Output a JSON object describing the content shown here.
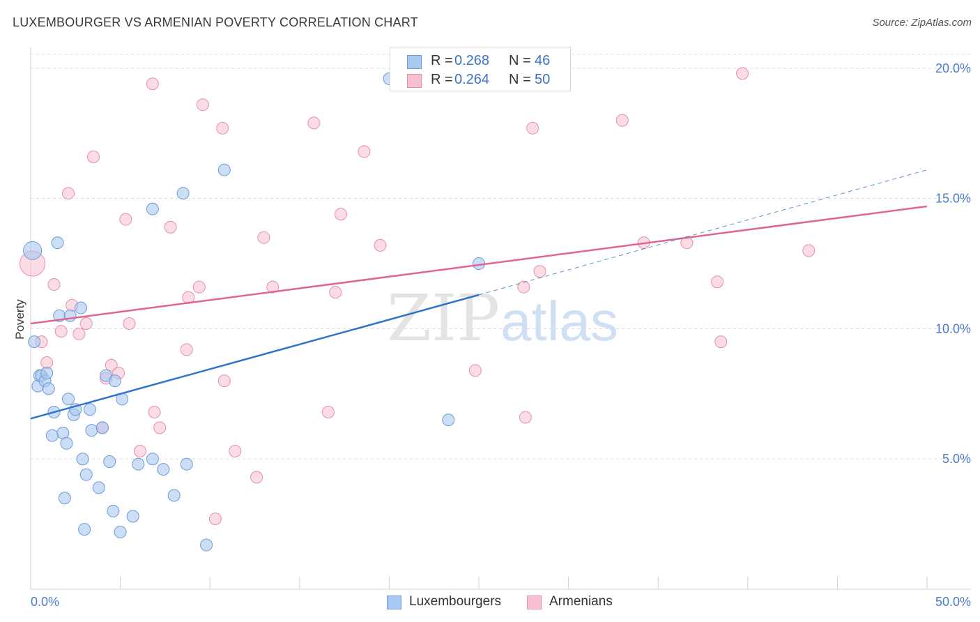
{
  "header": {
    "title": "LUXEMBOURGER VS ARMENIAN POVERTY CORRELATION CHART",
    "source": "Source: ZipAtlas.com"
  },
  "watermark": {
    "part1": "ZIP",
    "part2": "atlas"
  },
  "legend": {
    "rows": [
      {
        "r_label": "R = ",
        "r_value": "0.268",
        "n_label": "N = ",
        "n_value": "46"
      },
      {
        "r_label": "R = ",
        "r_value": "0.264",
        "n_label": "N = ",
        "n_value": "50"
      }
    ],
    "series_labels": [
      "Luxembourgers",
      "Armenians"
    ]
  },
  "colors": {
    "blue_fill": "#a9c8ef",
    "blue_stroke": "#6d9ad8",
    "blue_line": "#2f74cc",
    "pink_fill": "#f7bfd0",
    "pink_stroke": "#e58fac",
    "pink_line": "#e0668f",
    "tick_text": "#4a7cc9",
    "grid": "#dcdcdc"
  },
  "chart_data": {
    "type": "scatter",
    "title": "LUXEMBOURGER VS ARMENIAN POVERTY CORRELATION CHART",
    "xlabel": "",
    "ylabel": "Poverty",
    "xlim": [
      0,
      50
    ],
    "ylim": [
      0,
      20.8
    ],
    "x_tick_labels": [
      "0.0%",
      "50.0%"
    ],
    "y_ticks": [
      5,
      10,
      15,
      20
    ],
    "y_tick_labels": [
      "5.0%",
      "10.0%",
      "15.0%",
      "20.0%"
    ],
    "grid": "horizontal-dashed",
    "series": [
      {
        "name": "Luxembourgers",
        "r": 0.268,
        "n": 46,
        "trend": {
          "x0": 0,
          "y0": 6.55,
          "x1": 25,
          "y1": 11.3
        },
        "trend_extension": {
          "x0": 25,
          "y0": 11.3,
          "x1": 50,
          "y1": 16.1
        },
        "points": [
          [
            0.1,
            13.0
          ],
          [
            0.2,
            9.5
          ],
          [
            0.4,
            7.8
          ],
          [
            0.5,
            8.2
          ],
          [
            0.6,
            8.2
          ],
          [
            0.8,
            8.0
          ],
          [
            0.9,
            8.3
          ],
          [
            1.0,
            7.7
          ],
          [
            1.2,
            5.9
          ],
          [
            1.3,
            6.8
          ],
          [
            1.5,
            13.3
          ],
          [
            1.6,
            10.5
          ],
          [
            1.8,
            6.0
          ],
          [
            1.9,
            3.5
          ],
          [
            2.0,
            5.6
          ],
          [
            2.1,
            7.3
          ],
          [
            2.2,
            10.5
          ],
          [
            2.4,
            6.7
          ],
          [
            2.5,
            6.9
          ],
          [
            2.8,
            10.8
          ],
          [
            2.9,
            5.0
          ],
          [
            3.0,
            2.3
          ],
          [
            3.1,
            4.4
          ],
          [
            3.3,
            6.9
          ],
          [
            3.4,
            6.1
          ],
          [
            3.8,
            3.9
          ],
          [
            4.0,
            6.2
          ],
          [
            4.2,
            8.2
          ],
          [
            4.4,
            4.9
          ],
          [
            4.6,
            3.0
          ],
          [
            4.7,
            8.0
          ],
          [
            5.0,
            2.2
          ],
          [
            5.1,
            7.3
          ],
          [
            5.7,
            2.8
          ],
          [
            6.0,
            4.8
          ],
          [
            6.8,
            5.0
          ],
          [
            6.8,
            14.6
          ],
          [
            7.4,
            4.6
          ],
          [
            8.0,
            3.6
          ],
          [
            8.5,
            15.2
          ],
          [
            8.7,
            4.8
          ],
          [
            9.8,
            1.7
          ],
          [
            10.8,
            16.1
          ],
          [
            20.0,
            19.6
          ],
          [
            23.3,
            6.5
          ],
          [
            25.0,
            12.5
          ]
        ]
      },
      {
        "name": "Armenians",
        "r": 0.264,
        "n": 50,
        "trend": {
          "x0": 0,
          "y0": 10.2,
          "x1": 50,
          "y1": 14.7
        },
        "points": [
          [
            0.1,
            12.5
          ],
          [
            0.6,
            9.5
          ],
          [
            0.9,
            8.7
          ],
          [
            1.3,
            11.7
          ],
          [
            1.7,
            9.9
          ],
          [
            2.1,
            15.2
          ],
          [
            2.3,
            10.9
          ],
          [
            2.7,
            9.8
          ],
          [
            3.1,
            10.2
          ],
          [
            3.5,
            16.6
          ],
          [
            4.0,
            6.2
          ],
          [
            4.2,
            8.1
          ],
          [
            4.5,
            8.6
          ],
          [
            4.9,
            8.3
          ],
          [
            5.3,
            14.2
          ],
          [
            5.5,
            10.2
          ],
          [
            6.1,
            5.3
          ],
          [
            6.8,
            19.4
          ],
          [
            6.9,
            6.8
          ],
          [
            7.2,
            6.2
          ],
          [
            7.8,
            13.9
          ],
          [
            8.7,
            9.2
          ],
          [
            8.8,
            11.2
          ],
          [
            9.4,
            11.6
          ],
          [
            9.6,
            18.6
          ],
          [
            10.3,
            2.7
          ],
          [
            10.7,
            17.7
          ],
          [
            10.8,
            8.0
          ],
          [
            11.4,
            5.3
          ],
          [
            12.6,
            4.3
          ],
          [
            13.0,
            13.5
          ],
          [
            13.5,
            11.6
          ],
          [
            15.8,
            17.9
          ],
          [
            16.6,
            6.8
          ],
          [
            17.0,
            11.4
          ],
          [
            17.3,
            14.4
          ],
          [
            18.6,
            16.8
          ],
          [
            19.5,
            13.2
          ],
          [
            24.8,
            8.4
          ],
          [
            27.5,
            11.6
          ],
          [
            27.6,
            6.6
          ],
          [
            28.0,
            17.7
          ],
          [
            28.4,
            12.2
          ],
          [
            33.0,
            18.0
          ],
          [
            34.2,
            13.3
          ],
          [
            36.6,
            13.3
          ],
          [
            38.3,
            11.8
          ],
          [
            38.5,
            9.5
          ],
          [
            39.7,
            19.8
          ],
          [
            43.4,
            13.0
          ]
        ]
      }
    ]
  }
}
